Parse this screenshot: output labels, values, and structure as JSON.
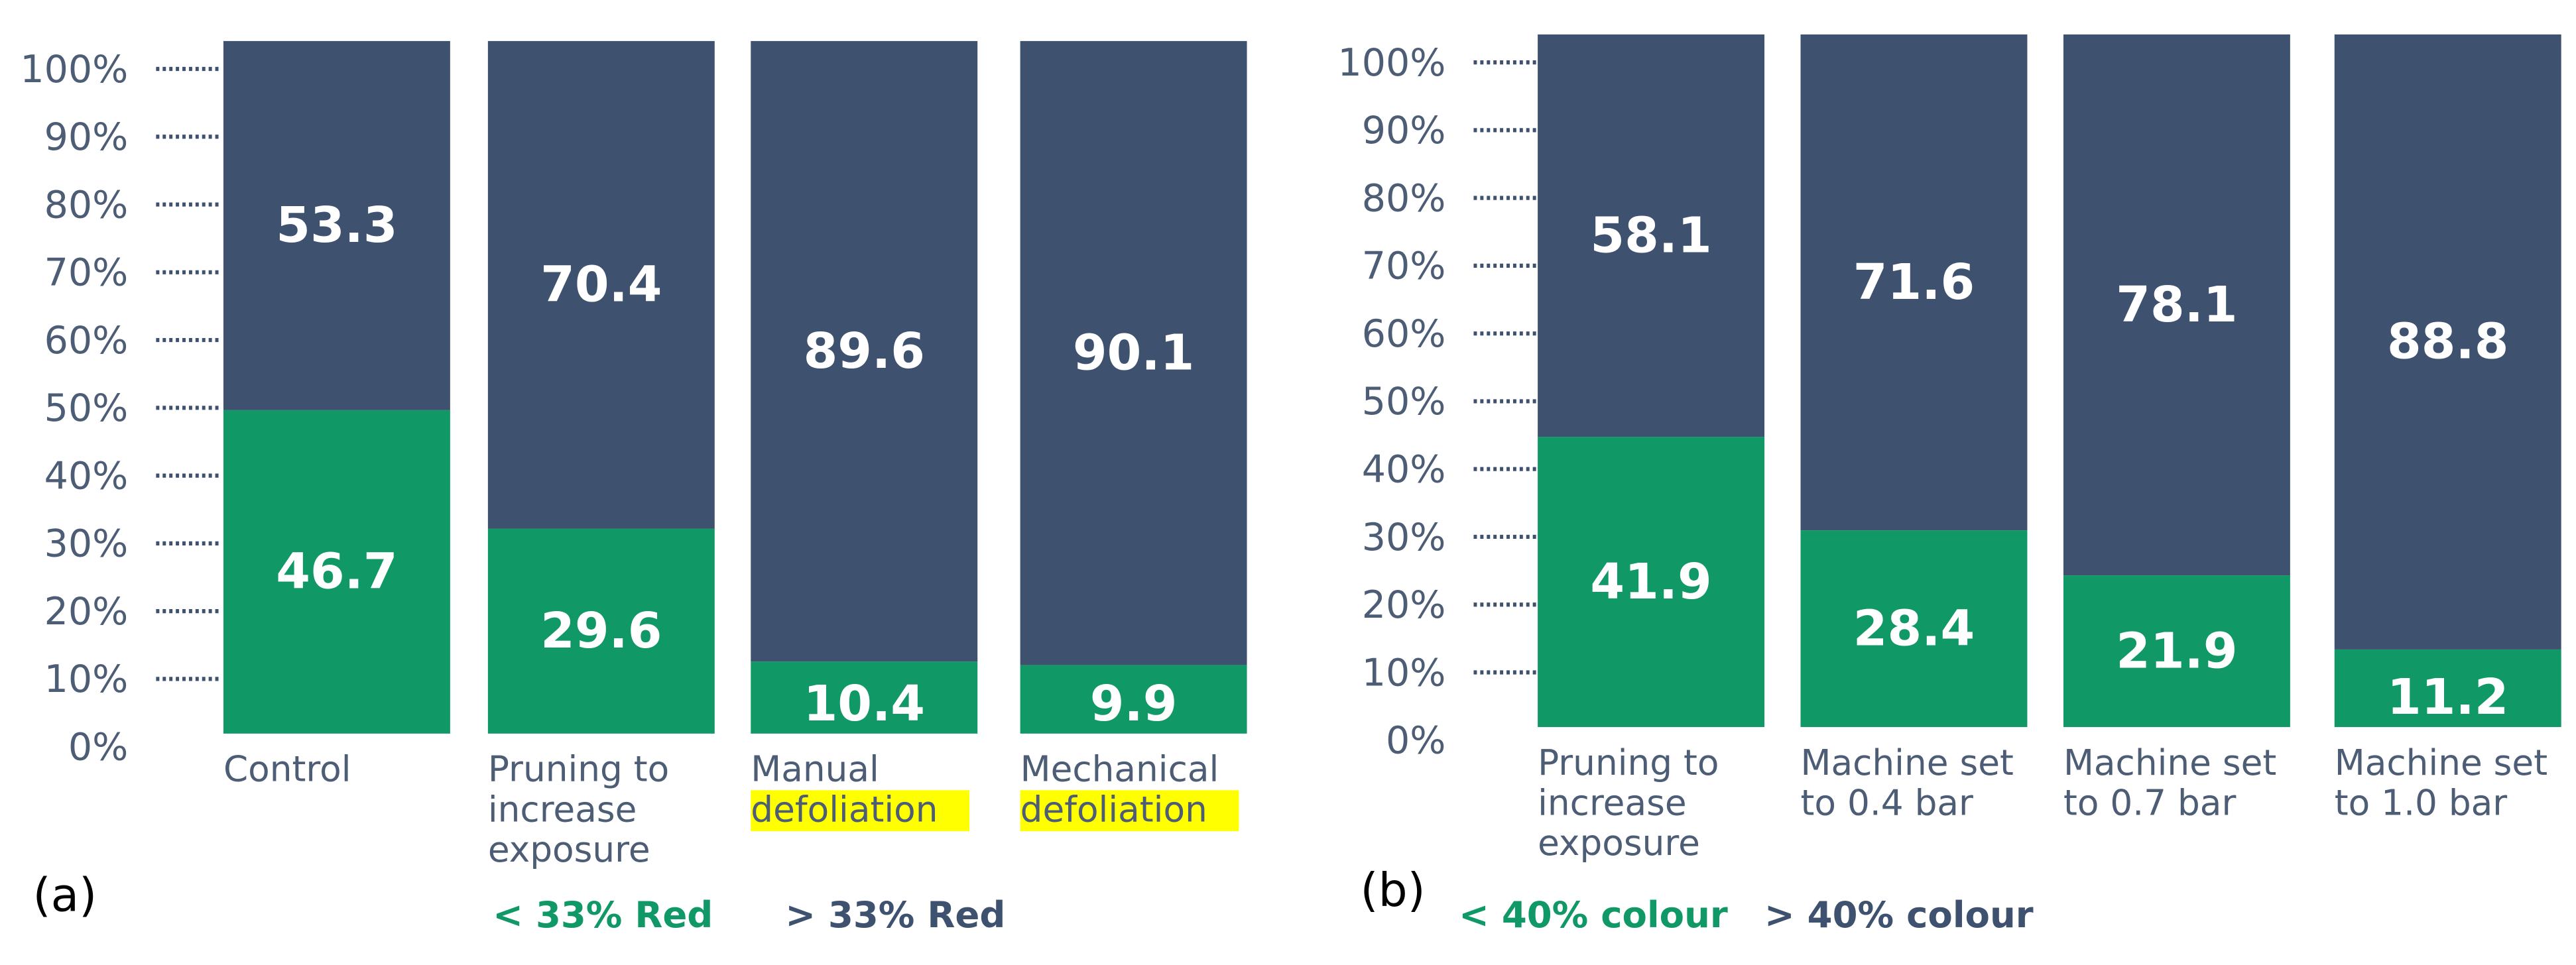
{
  "chart_data": [
    {
      "type": "bar",
      "stacked": true,
      "panel_label": "(a)",
      "categories": [
        [
          "Control"
        ],
        [
          "Pruning to",
          "increase",
          "exposure"
        ],
        [
          "Manual",
          "defoliation"
        ],
        [
          "Mechanical",
          "defoliation"
        ]
      ],
      "highlighted_words": [
        "defoliation"
      ],
      "highlight_color": "#FFFF00",
      "ylim": [
        0,
        100
      ],
      "yticks": [
        "0%",
        "10%",
        "20%",
        "30%",
        "40%",
        "50%",
        "60%",
        "70%",
        "80%",
        "90%",
        "100%"
      ],
      "series": [
        {
          "name": "< 33% Red",
          "color": "#109966",
          "values": [
            46.7,
            29.6,
            10.4,
            9.9
          ]
        },
        {
          "name": "> 33% Red",
          "color": "#3E5270",
          "values": [
            53.3,
            70.4,
            89.6,
            90.1
          ]
        }
      ],
      "legend": "bottom"
    },
    {
      "type": "bar",
      "stacked": true,
      "panel_label": "(b)",
      "categories": [
        [
          "Pruning to",
          "increase",
          "exposure"
        ],
        [
          "Machine set",
          "to 0.4 bar"
        ],
        [
          "Machine set",
          "to 0.7 bar"
        ],
        [
          "Machine set",
          "to 1.0 bar"
        ]
      ],
      "highlighted_words": [],
      "highlight_color": "#FFFF00",
      "ylim": [
        0,
        100
      ],
      "yticks": [
        "0%",
        "10%",
        "20%",
        "30%",
        "40%",
        "50%",
        "60%",
        "70%",
        "80%",
        "90%",
        "100%"
      ],
      "series": [
        {
          "name": "< 40% colour",
          "color": "#109966",
          "values": [
            41.9,
            28.4,
            21.9,
            11.2
          ]
        },
        {
          "name": "> 40% colour",
          "color": "#3E5270",
          "values": [
            58.1,
            71.6,
            78.1,
            88.8
          ]
        }
      ],
      "legend": "bottom"
    }
  ]
}
